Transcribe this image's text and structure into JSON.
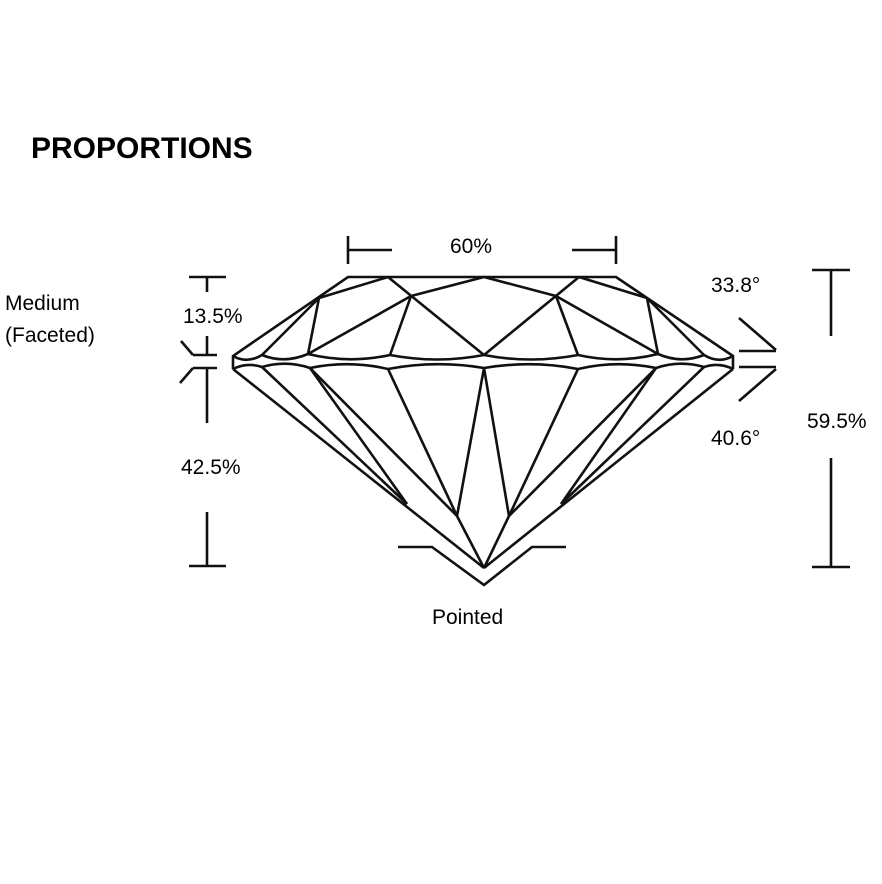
{
  "title": "PROPORTIONS",
  "girdle": {
    "line1": "Medium",
    "line2": "(Faceted)"
  },
  "table_percent": "60%",
  "crown_height": "13.5%",
  "pavilion_depth": "42.5%",
  "total_depth": "59.5%",
  "crown_angle": "33.8°",
  "pavilion_angle": "40.6°",
  "culet": "Pointed"
}
